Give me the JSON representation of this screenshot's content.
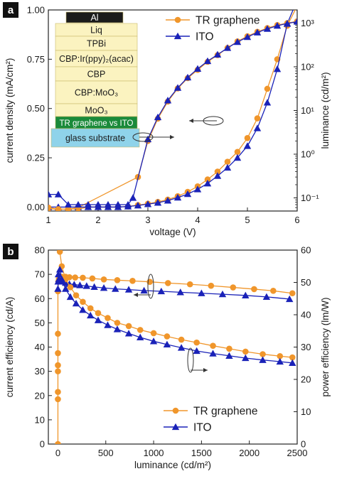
{
  "colors": {
    "tr": "#f0962b",
    "ito": "#1a22b8",
    "panel_label_bg": "#111111"
  },
  "panel_a": {
    "label": "a",
    "stack_layers": [
      "Al",
      "Liq",
      "TPBi",
      "CBP:Ir(ppy)₂(acac)",
      "CBP",
      "CBP:MoO₃",
      "MoO₃",
      "TR graphene vs ITO",
      "glass substrate"
    ]
  },
  "panel_b": {
    "label": "b"
  },
  "chart_data": [
    {
      "type": "line",
      "panel": "a",
      "xlabel": "voltage (V)",
      "ylabel": "current density (mA/cm²)",
      "y2label": "luminance (cd/m²)",
      "xlim": [
        1,
        6
      ],
      "ylim": [
        -0.02,
        1.0
      ],
      "y2lim": [
        0.05,
        2000
      ],
      "y2scale": "log",
      "xticks": [
        1,
        2,
        3,
        4,
        5,
        6
      ],
      "yticks": [
        0.0,
        0.25,
        0.5,
        0.75,
        1.0
      ],
      "yticklabels": [
        "0.00",
        "0.25",
        "0.50",
        "0.75",
        "1.00"
      ],
      "y2ticks": [
        0.1,
        1,
        10,
        100,
        1000
      ],
      "y2ticklabels": [
        "10⁻¹",
        "10⁰",
        "10¹",
        "10²",
        "10³"
      ],
      "legend": {
        "position": "top-right",
        "entries": [
          "TR graphene",
          "ITO"
        ]
      },
      "series": [
        {
          "name": "TR graphene",
          "axis": "left",
          "marker": "circle",
          "x": [
            1.0,
            1.2,
            1.4,
            1.6,
            1.8,
            2.0,
            2.2,
            2.4,
            2.6,
            2.8,
            3.0,
            3.2,
            3.4,
            3.6,
            3.8,
            4.0,
            4.2,
            4.4,
            4.6,
            4.8,
            5.0,
            5.2,
            5.4,
            5.6,
            5.8,
            6.0
          ],
          "y": [
            -0.01,
            -0.01,
            -0.01,
            -0.01,
            0.0,
            0.0,
            0.0,
            0.0,
            0.003,
            0.01,
            0.017,
            0.026,
            0.038,
            0.055,
            0.077,
            0.105,
            0.14,
            0.18,
            0.23,
            0.28,
            0.35,
            0.45,
            0.6,
            0.75,
            0.92,
            1.02
          ]
        },
        {
          "name": "ITO",
          "axis": "left",
          "marker": "triangle",
          "x": [
            1.0,
            1.2,
            1.4,
            1.6,
            1.8,
            2.0,
            2.2,
            2.4,
            2.6,
            2.8,
            3.0,
            3.2,
            3.4,
            3.6,
            3.8,
            4.0,
            4.2,
            4.4,
            4.6,
            4.8,
            5.0,
            5.2,
            5.4,
            5.6,
            5.8,
            6.0
          ],
          "y": [
            0.0,
            0.0,
            0.0,
            0.0,
            0.0,
            0.0,
            0.0,
            0.0,
            0.003,
            0.008,
            0.015,
            0.022,
            0.033,
            0.048,
            0.066,
            0.09,
            0.12,
            0.158,
            0.2,
            0.25,
            0.31,
            0.4,
            0.53,
            0.7,
            0.93,
            1.05
          ]
        },
        {
          "name": "TR graphene",
          "axis": "right",
          "marker": "circle",
          "x": [
            1.0,
            1.2,
            1.4,
            1.6,
            2.8,
            3.0,
            3.2,
            3.4,
            3.6,
            3.8,
            4.0,
            4.2,
            4.4,
            4.6,
            4.8,
            5.0,
            5.2,
            5.4,
            5.6,
            5.8,
            6.0
          ],
          "y": [
            0.06,
            0.055,
            0.055,
            0.06,
            0.3,
            2.0,
            6.5,
            16,
            32,
            55,
            85,
            130,
            185,
            270,
            380,
            500,
            630,
            770,
            900,
            1000,
            1100
          ]
        },
        {
          "name": "ITO",
          "axis": "right",
          "marker": "triangle",
          "x": [
            1.0,
            1.2,
            1.4,
            1.6,
            1.8,
            2.0,
            2.2,
            2.4,
            2.6,
            2.7,
            3.0,
            3.2,
            3.4,
            3.6,
            3.8,
            4.0,
            4.2,
            4.4,
            4.6,
            4.8,
            5.0,
            5.2,
            5.4,
            5.6,
            5.8,
            6.0
          ],
          "y": [
            0.12,
            0.12,
            0.07,
            0.07,
            0.07,
            0.07,
            0.07,
            0.07,
            0.07,
            0.1,
            2.2,
            7,
            17,
            33,
            57,
            90,
            135,
            190,
            270,
            370,
            480,
            610,
            740,
            870,
            980,
            1080
          ]
        }
      ]
    },
    {
      "type": "line",
      "panel": "b",
      "xlabel": "luminance (cd/m²)",
      "ylabel": "current efficiency (cd/A)",
      "y2label": "power efficiency (lm/W)",
      "xlim": [
        -100,
        2500
      ],
      "ylim": [
        0,
        80
      ],
      "y2lim": [
        0,
        60
      ],
      "xticks": [
        0,
        500,
        1000,
        1500,
        2000,
        2500
      ],
      "yticks": [
        0,
        10,
        20,
        30,
        40,
        50,
        60,
        70,
        80
      ],
      "y2ticks": [
        0,
        10,
        20,
        30,
        40,
        50,
        60
      ],
      "legend": {
        "position": "bottom-left",
        "entries": [
          "TR graphene",
          "ITO"
        ]
      },
      "series": [
        {
          "name": "TR graphene",
          "axis": "left",
          "marker": "circle",
          "x": [
            0,
            0,
            0,
            0,
            0,
            0,
            0,
            0,
            5,
            10,
            20,
            40,
            80,
            120,
            180,
            260,
            360,
            480,
            620,
            780,
            960,
            1150,
            1380,
            1600,
            1830,
            2050,
            2250,
            2450
          ],
          "y": [
            0,
            18.5,
            21.5,
            30,
            32.5,
            37.5,
            45.5,
            63,
            67,
            68,
            68.5,
            69,
            69,
            68.8,
            68.7,
            68.6,
            68.3,
            67.9,
            67.6,
            67.3,
            66.9,
            66.4,
            65.9,
            65.3,
            64.6,
            63.9,
            63.2,
            62.2
          ]
        },
        {
          "name": "ITO",
          "axis": "left",
          "marker": "triangle",
          "x": [
            0,
            2,
            5,
            10,
            20,
            40,
            80,
            120,
            170,
            230,
            300,
            380,
            480,
            600,
            740,
            900,
            1080,
            1280,
            1500,
            1720,
            1960,
            2180,
            2420
          ],
          "y": [
            64,
            67,
            70,
            68,
            67.5,
            67,
            66.5,
            66,
            65.8,
            65.5,
            65.2,
            64.8,
            64.4,
            64,
            63.7,
            63.3,
            63,
            62.6,
            62.2,
            61.8,
            61.3,
            60.7,
            59.8
          ]
        },
        {
          "name": "TR graphene",
          "axis": "right",
          "marker": "circle",
          "x": [
            20,
            40,
            80,
            130,
            190,
            260,
            340,
            420,
            520,
            620,
            740,
            860,
            1000,
            1140,
            1290,
            1450,
            1620,
            1790,
            1960,
            2140,
            2320,
            2450
          ],
          "y": [
            59.5,
            55,
            51,
            48.5,
            46,
            44,
            42,
            40.5,
            39,
            37.5,
            36.5,
            35.3,
            34.3,
            33.3,
            32.3,
            31.4,
            30.4,
            29.5,
            28.6,
            27.8,
            27.2,
            26.8
          ]
        },
        {
          "name": "ITO",
          "axis": "right",
          "marker": "triangle",
          "x": [
            20,
            40,
            80,
            130,
            190,
            260,
            340,
            420,
            520,
            620,
            740,
            860,
            1000,
            1140,
            1290,
            1450,
            1620,
            1790,
            1960,
            2140,
            2320,
            2450
          ],
          "y": [
            54,
            51,
            48,
            45.5,
            43.5,
            41.5,
            39.8,
            38.3,
            36.8,
            35.5,
            34.2,
            33,
            31.8,
            30.8,
            29.8,
            28.8,
            28,
            27.3,
            26.6,
            26,
            25.5,
            25.1
          ]
        }
      ]
    }
  ]
}
